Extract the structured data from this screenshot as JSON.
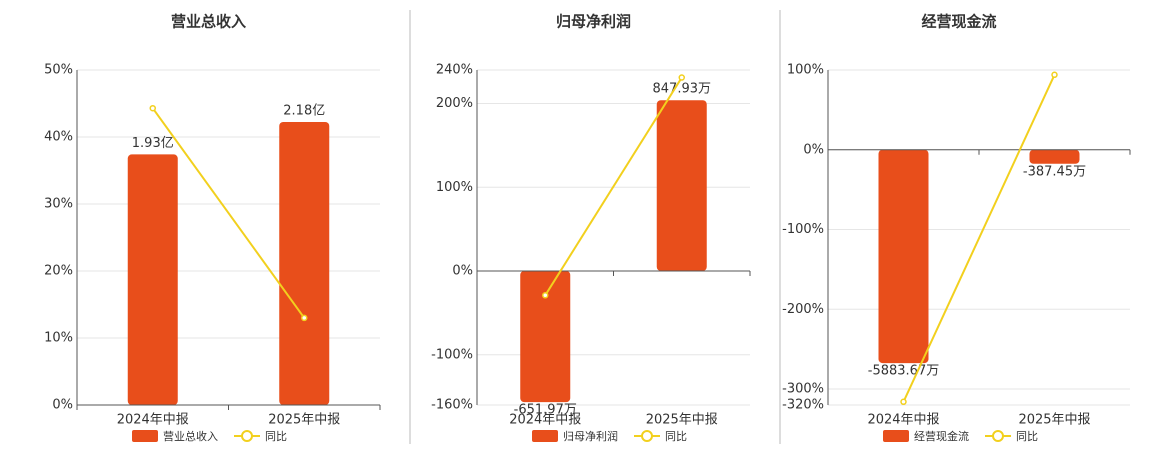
{
  "chart_data": [
    {
      "type": "combo",
      "title": "营业总收入",
      "categories": [
        "2024年中报",
        "2025年中报"
      ],
      "series": [
        {
          "name": "营业总收入",
          "color": "#e84e1b",
          "axis": "y2",
          "values": [
            1.93,
            2.18
          ],
          "value_labels": [
            "1.93亿",
            "2.18亿"
          ]
        },
        {
          "name": "同比",
          "color": "#f2d01e",
          "values": [
            44.3,
            13
          ]
        }
      ],
      "ylim": [
        0,
        50
      ],
      "yticks": [
        {
          "value": 0,
          "label": "0%"
        },
        {
          "value": 10,
          "label": "10%"
        },
        {
          "value": 20,
          "label": "20%"
        },
        {
          "value": 30,
          "label": "30%"
        },
        {
          "value": 40,
          "label": "40%"
        },
        {
          "value": 50,
          "label": "50%"
        }
      ],
      "y2lim": [
        0,
        2.58
      ],
      "grid": true
    },
    {
      "type": "combo",
      "title": "归母净利润",
      "categories": [
        "2024年中报",
        "2025年中报"
      ],
      "series": [
        {
          "name": "归母净利润",
          "color": "#e84e1b",
          "axis": "y2",
          "values": [
            -651.97,
            847.93
          ],
          "value_labels": [
            "-651.97万",
            "847.93万"
          ]
        },
        {
          "name": "同比",
          "color": "#f2d01e",
          "values": [
            -29,
            231
          ]
        }
      ],
      "ylim": [
        -160,
        240
      ],
      "yticks": [
        {
          "value": -160,
          "label": "-160%"
        },
        {
          "value": -100,
          "label": "-100%"
        },
        {
          "value": 0,
          "label": "0%"
        },
        {
          "value": 100,
          "label": "100%"
        },
        {
          "value": 200,
          "label": "200%"
        },
        {
          "value": 240,
          "label": "240%"
        }
      ],
      "y2lim": [
        -666,
        998
      ],
      "grid": true
    },
    {
      "type": "combo",
      "title": "经营现金流",
      "categories": [
        "2024年中报",
        "2025年中报"
      ],
      "series": [
        {
          "name": "经营现金流",
          "color": "#e84e1b",
          "axis": "y2",
          "values": [
            -5883.67,
            -387.45
          ],
          "value_labels": [
            "-5883.67万",
            "-387.45万"
          ]
        },
        {
          "name": "同比",
          "color": "#f2d01e",
          "values": [
            -316,
            94
          ]
        }
      ],
      "ylim": [
        -320,
        100
      ],
      "yticks": [
        {
          "value": -320,
          "label": "-320%"
        },
        {
          "value": -300,
          "label": "-300%"
        },
        {
          "value": -200,
          "label": "-200%"
        },
        {
          "value": -100,
          "label": "-100%"
        },
        {
          "value": 0,
          "label": "0%"
        },
        {
          "value": 100,
          "label": "100%"
        }
      ],
      "y2lim": [
        -7040,
        2200
      ],
      "grid": true
    }
  ]
}
